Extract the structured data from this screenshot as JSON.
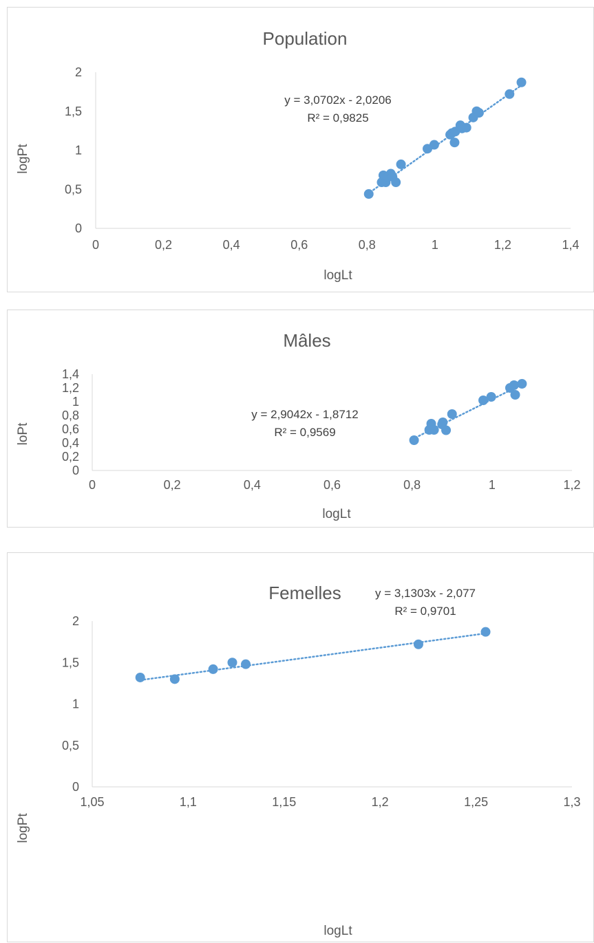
{
  "chart_data": [
    {
      "type": "scatter",
      "title": "Population",
      "xlabel": "logLt",
      "ylabel": "logPt",
      "xlim": [
        0,
        1.4
      ],
      "ylim": [
        0,
        2
      ],
      "x_ticks": [
        "0",
        "0,2",
        "0,4",
        "0,6",
        "0,8",
        "1",
        "1,2",
        "1,4"
      ],
      "y_ticks": [
        "0",
        "0,5",
        "1",
        "1,5",
        "2"
      ],
      "equation": "y = 3,0702x - 2,0206",
      "r2": "R² = 0,9825",
      "trendline": {
        "slope": 3.0702,
        "intercept": -2.0206,
        "x_range": [
          0.8,
          1.255
        ]
      },
      "marker_color": "#5b9bd5",
      "grid": false,
      "points": [
        {
          "x": 0.805,
          "y": 0.44
        },
        {
          "x": 0.843,
          "y": 0.59
        },
        {
          "x": 0.848,
          "y": 0.68
        },
        {
          "x": 0.855,
          "y": 0.59
        },
        {
          "x": 0.862,
          "y": 0.66
        },
        {
          "x": 0.87,
          "y": 0.7
        },
        {
          "x": 0.875,
          "y": 0.66
        },
        {
          "x": 0.885,
          "y": 0.59
        },
        {
          "x": 0.9,
          "y": 0.82
        },
        {
          "x": 0.978,
          "y": 1.02
        },
        {
          "x": 0.998,
          "y": 1.07
        },
        {
          "x": 1.045,
          "y": 1.2
        },
        {
          "x": 1.05,
          "y": 1.22
        },
        {
          "x": 1.058,
          "y": 1.1
        },
        {
          "x": 1.06,
          "y": 1.24
        },
        {
          "x": 1.075,
          "y": 1.32
        },
        {
          "x": 1.08,
          "y": 1.28
        },
        {
          "x": 1.093,
          "y": 1.29
        },
        {
          "x": 1.113,
          "y": 1.42
        },
        {
          "x": 1.123,
          "y": 1.5
        },
        {
          "x": 1.13,
          "y": 1.48
        },
        {
          "x": 1.22,
          "y": 1.72
        },
        {
          "x": 1.255,
          "y": 1.87
        }
      ]
    },
    {
      "type": "scatter",
      "title": "Mâles",
      "xlabel": "logLt",
      "ylabel": "loPt",
      "xlim": [
        0,
        1.2
      ],
      "ylim": [
        0,
        1.4
      ],
      "x_ticks": [
        "0",
        "0,2",
        "0,4",
        "0,6",
        "0,8",
        "1",
        "1,2"
      ],
      "y_ticks": [
        "0",
        "0,2",
        "0,4",
        "0,6",
        "0,8",
        "1",
        "1,2",
        "1,4"
      ],
      "equation": "y = 2,9042x - 1,8712",
      "r2": "R² = 0,9569",
      "trendline": {
        "slope": 2.9042,
        "intercept": -1.8712,
        "x_range": [
          0.8,
          1.08
        ]
      },
      "marker_color": "#5b9bd5",
      "grid": false,
      "points": [
        {
          "x": 0.805,
          "y": 0.44
        },
        {
          "x": 0.843,
          "y": 0.59
        },
        {
          "x": 0.848,
          "y": 0.68
        },
        {
          "x": 0.855,
          "y": 0.59
        },
        {
          "x": 0.875,
          "y": 0.67
        },
        {
          "x": 0.877,
          "y": 0.7
        },
        {
          "x": 0.885,
          "y": 0.585
        },
        {
          "x": 0.9,
          "y": 0.82
        },
        {
          "x": 0.978,
          "y": 1.02
        },
        {
          "x": 0.998,
          "y": 1.07
        },
        {
          "x": 1.045,
          "y": 1.2
        },
        {
          "x": 1.055,
          "y": 1.24
        },
        {
          "x": 1.058,
          "y": 1.1
        },
        {
          "x": 1.075,
          "y": 1.26
        }
      ]
    },
    {
      "type": "scatter",
      "title": "Femelles",
      "xlabel": "logLt",
      "ylabel": "logPt",
      "xlim": [
        1.05,
        1.3
      ],
      "ylim": [
        0,
        2
      ],
      "x_ticks": [
        "1,05",
        "1,1",
        "1,15",
        "1,2",
        "1,25",
        "1,3"
      ],
      "y_ticks": [
        "0",
        "0,5",
        "1",
        "1,5",
        "2"
      ],
      "equation": "y = 3,1303x - 2,077",
      "r2": "R² = 0,9701",
      "trendline": {
        "slope": 3.1303,
        "intercept": -2.077,
        "x_range": [
          1.075,
          1.255
        ]
      },
      "marker_color": "#5b9bd5",
      "grid": false,
      "points": [
        {
          "x": 1.075,
          "y": 1.32
        },
        {
          "x": 1.093,
          "y": 1.3
        },
        {
          "x": 1.113,
          "y": 1.42
        },
        {
          "x": 1.123,
          "y": 1.5
        },
        {
          "x": 1.13,
          "y": 1.48
        },
        {
          "x": 1.22,
          "y": 1.72
        },
        {
          "x": 1.255,
          "y": 1.87
        }
      ]
    }
  ]
}
